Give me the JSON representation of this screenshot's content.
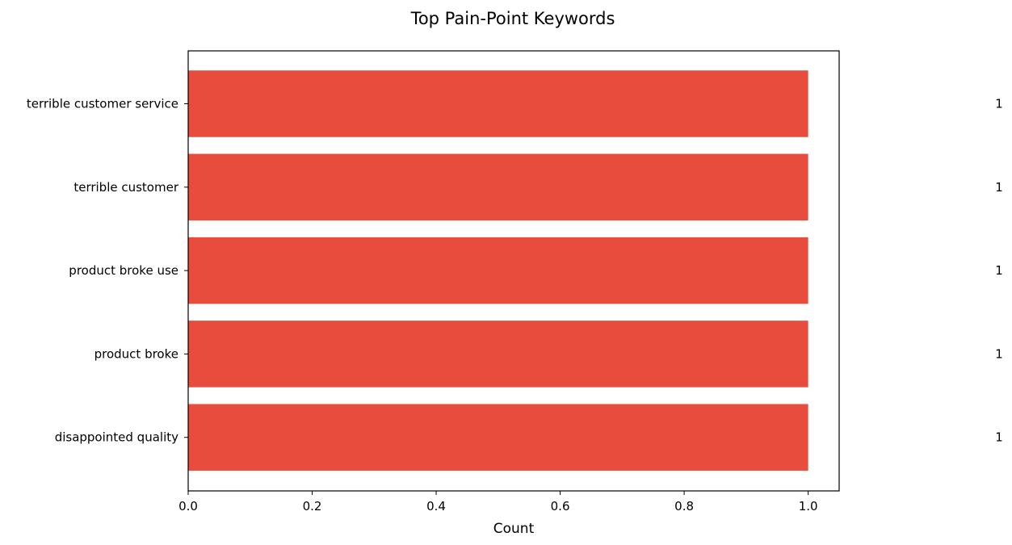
{
  "chart_data": {
    "type": "bar",
    "orientation": "horizontal",
    "title": "Top Pain-Point Keywords",
    "xlabel": "Count",
    "ylabel": "",
    "categories": [
      "terrible customer service",
      "terrible customer",
      "product broke use",
      "product broke",
      "disappointed quality"
    ],
    "values": [
      1,
      1,
      1,
      1,
      1
    ],
    "value_labels": [
      "1",
      "1",
      "1",
      "1",
      "1"
    ],
    "xlim": [
      0,
      1.05
    ],
    "xticks": [
      0.0,
      0.2,
      0.4,
      0.6,
      0.8,
      1.0
    ],
    "xtick_labels": [
      "0.0",
      "0.2",
      "0.4",
      "0.6",
      "0.8",
      "1.0"
    ],
    "grid": false,
    "bar_color": "#e74c3c"
  }
}
